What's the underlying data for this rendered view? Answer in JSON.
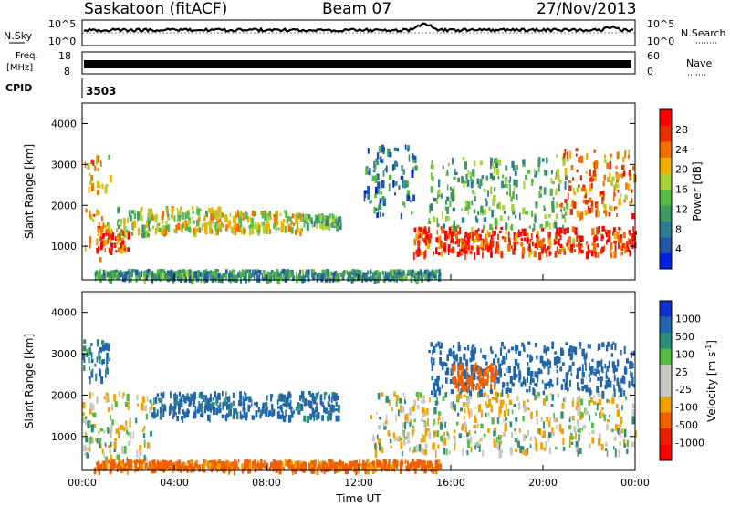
{
  "header": {
    "station": "Saskatoon (fitACF)",
    "beam": "Beam 07",
    "date": "27/Nov/2013"
  },
  "nsky_panel": {
    "left_label": "N.Sky",
    "right_label": "N.Search",
    "ytick_top": "10^5",
    "ytick_bottom": "10^0"
  },
  "freq_panel": {
    "left_label_1": "Freq.",
    "left_label_2": "[MHz]",
    "right_label": "Nave",
    "left_ticks": [
      "18",
      "8"
    ],
    "right_ticks": [
      "60",
      "0"
    ]
  },
  "cpid_panel": {
    "label": "CPID",
    "value": "3503"
  },
  "colors": {
    "power_scale": [
      "#0022dd",
      "#2255aa",
      "#2e7d8c",
      "#3d9966",
      "#55bb44",
      "#a8d23a",
      "#f0b000",
      "#f07000",
      "#e83000",
      "#ff0000"
    ],
    "velocity_scale": [
      "#1133cc",
      "#2266aa",
      "#2e8c7a",
      "#55bb44",
      "#c8c8c0",
      "#c8c8c0",
      "#f0a000",
      "#f06000",
      "#e82000",
      "#ff0000"
    ]
  },
  "chart_data": [
    {
      "type": "heatmap",
      "name": "power-panel",
      "ylabel": "Slant Range [km]",
      "xlabel": "",
      "x_ticks": [
        "00:00",
        "04:00",
        "08:00",
        "12:00",
        "16:00",
        "20:00",
        "00:00"
      ],
      "x_range_hours": [
        0,
        24
      ],
      "y_ticks": [
        1000,
        2000,
        3000,
        4000
      ],
      "y_range_km": [
        180,
        4500
      ],
      "colorbar_label": "Power [dB]",
      "colorbar_ticks": [
        "4",
        "8",
        "12",
        "16",
        "20",
        "24",
        "28"
      ],
      "colorbar_range_db": [
        0,
        30
      ],
      "echo_regions": [
        {
          "t0": 0.0,
          "t1": 1.2,
          "r0": 700,
          "r1": 3300,
          "level_db": 20
        },
        {
          "t0": 0.6,
          "t1": 2.0,
          "r0": 900,
          "r1": 1500,
          "level_db": 26
        },
        {
          "t0": 1.5,
          "t1": 3.0,
          "r0": 1300,
          "r1": 2000,
          "level_db": 14
        },
        {
          "t0": 3.0,
          "t1": 6.0,
          "r0": 1400,
          "r1": 2000,
          "level_db": 16
        },
        {
          "t0": 5.5,
          "t1": 9.5,
          "r0": 1400,
          "r1": 1900,
          "level_db": 18
        },
        {
          "t0": 9.5,
          "t1": 11.2,
          "r0": 1550,
          "r1": 1800,
          "level_db": 12
        },
        {
          "t0": 0.5,
          "t1": 15.5,
          "r0": 250,
          "r1": 450,
          "level_db": 10
        },
        {
          "t0": 12.2,
          "t1": 14.5,
          "r0": 1800,
          "r1": 3500,
          "level_db": 8
        },
        {
          "t0": 14.3,
          "t1": 24.0,
          "r0": 850,
          "r1": 1500,
          "level_db": 26
        },
        {
          "t0": 15.0,
          "t1": 21.0,
          "r0": 1500,
          "r1": 3200,
          "level_db": 12
        },
        {
          "t0": 20.5,
          "t1": 24.0,
          "r0": 1800,
          "r1": 3400,
          "level_db": 22
        }
      ]
    },
    {
      "type": "heatmap",
      "name": "velocity-panel",
      "ylabel": "Slant Range [km]",
      "xlabel": "Time UT",
      "x_ticks": [
        "00:00",
        "04:00",
        "08:00",
        "12:00",
        "16:00",
        "20:00",
        "00:00"
      ],
      "x_range_hours": [
        0,
        24
      ],
      "y_ticks": [
        1000,
        2000,
        3000,
        4000
      ],
      "y_range_km": [
        180,
        4500
      ],
      "colorbar_label": "Velocity [m s^-1]",
      "colorbar_ticks": [
        "1000",
        "500",
        "100",
        "25",
        "-25",
        "-100",
        "-500",
        "-1000"
      ],
      "echo_regions": [
        {
          "t0": 0.0,
          "t1": 3.0,
          "r0": 500,
          "r1": 2100,
          "velocity": 0
        },
        {
          "t0": 0.0,
          "t1": 1.2,
          "r0": 2400,
          "r1": 3400,
          "velocity": 120
        },
        {
          "t0": 3.0,
          "t1": 11.2,
          "r0": 1500,
          "r1": 2100,
          "velocity": 150
        },
        {
          "t0": 0.5,
          "t1": 15.5,
          "r0": 250,
          "r1": 450,
          "velocity": -150
        },
        {
          "t0": 12.5,
          "t1": 24.0,
          "r0": 650,
          "r1": 2100,
          "velocity": 0
        },
        {
          "t0": 15.0,
          "t1": 24.0,
          "r0": 2100,
          "r1": 3300,
          "velocity": 200
        },
        {
          "t0": 16.0,
          "t1": 18.0,
          "r0": 2200,
          "r1": 2800,
          "velocity": -200
        }
      ]
    }
  ]
}
